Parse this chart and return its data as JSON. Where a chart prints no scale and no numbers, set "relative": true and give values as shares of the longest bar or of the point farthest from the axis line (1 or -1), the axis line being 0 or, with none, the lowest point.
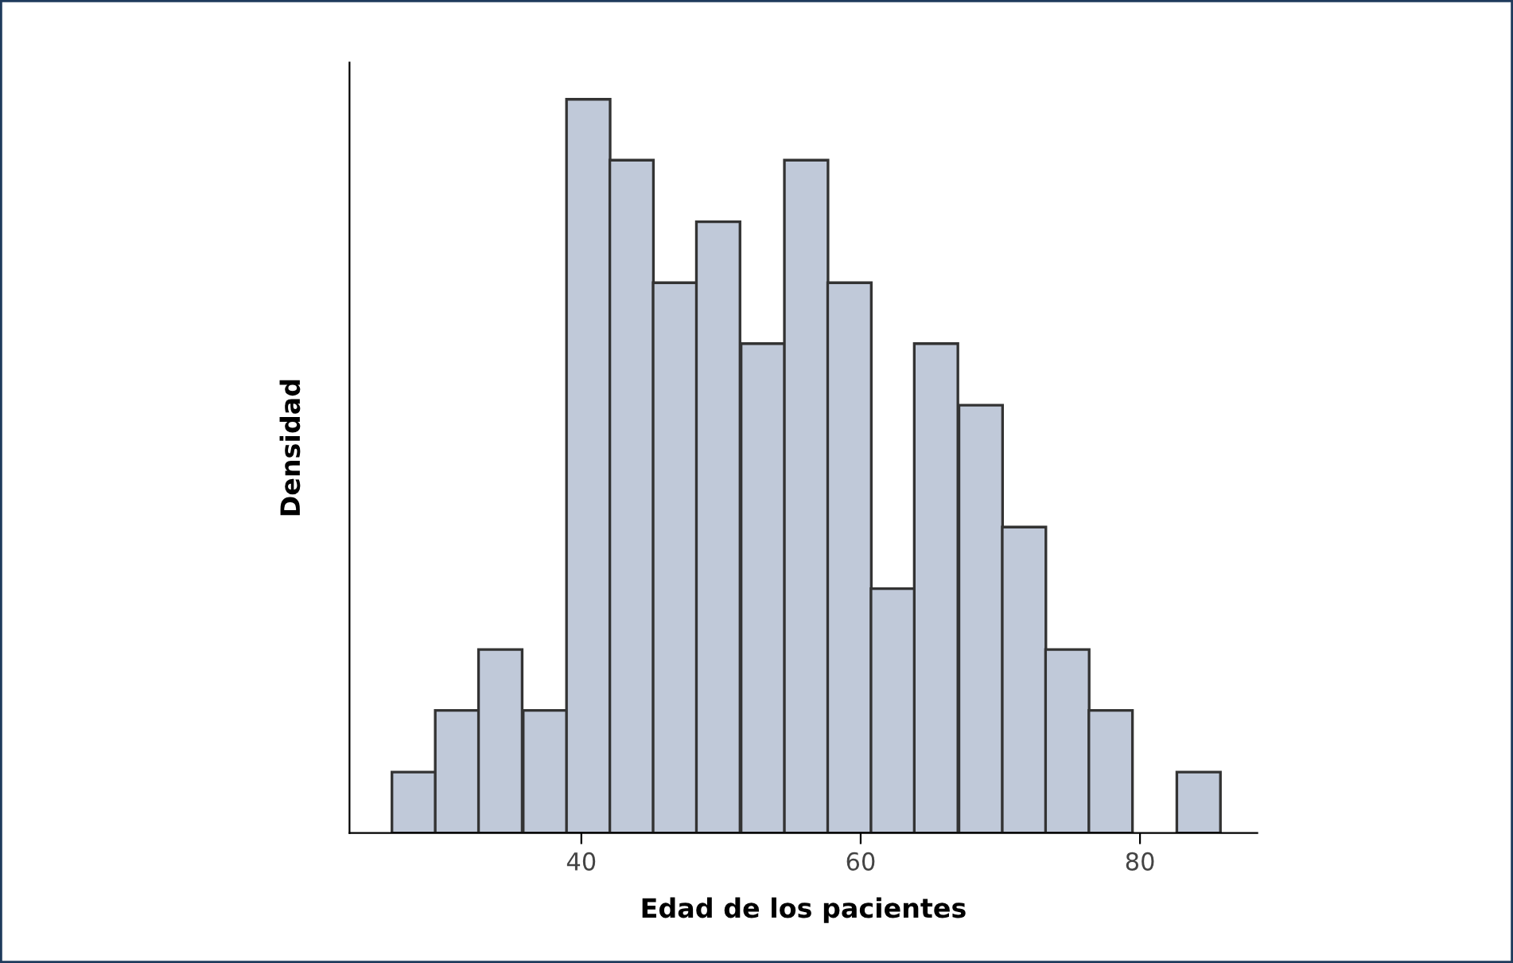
{
  "chart_data": {
    "type": "bar",
    "xlabel": "Edad de los pacientes",
    "ylabel": "Densidad",
    "relative": true,
    "x": [
      28.0,
      31.1,
      34.2,
      37.4,
      40.5,
      43.6,
      46.7,
      49.8,
      53.0,
      56.1,
      59.2,
      62.3,
      65.4,
      68.6,
      71.7,
      74.8,
      77.9,
      81.0,
      84.2
    ],
    "values": [
      0.083,
      0.167,
      0.25,
      0.167,
      1,
      0.917,
      0.75,
      0.833,
      0.667,
      0.917,
      0.75,
      0.333,
      0.667,
      0.583,
      0.417,
      0.25,
      0.167,
      0,
      0.083
    ],
    "color": "#c0c9d9",
    "xlim": [
      23.4,
      88.4
    ],
    "xticks": [
      40,
      60,
      80
    ],
    "grid": false
  }
}
